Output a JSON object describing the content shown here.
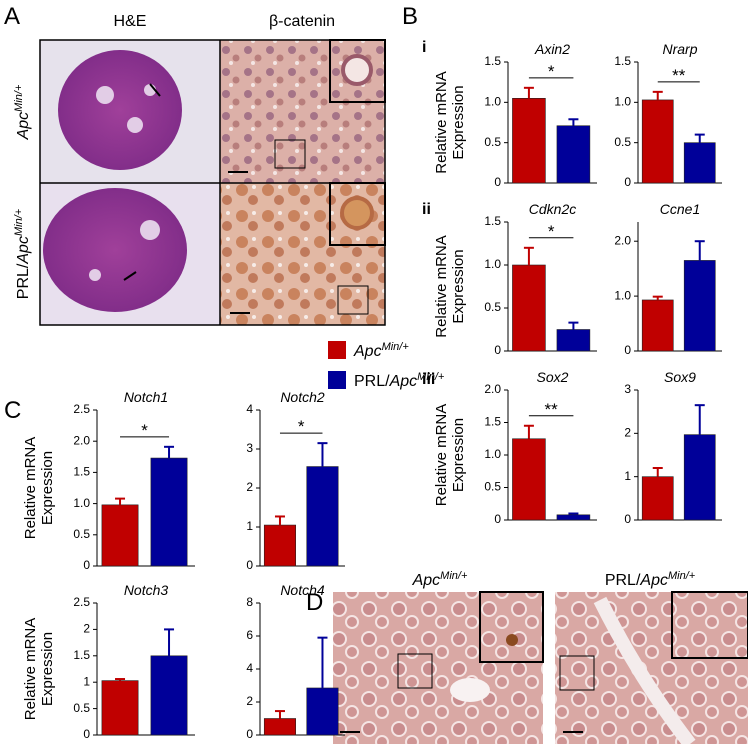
{
  "panels": {
    "A": {
      "letter": "A",
      "columns": [
        "H&E",
        "β-catenin"
      ],
      "rows": [
        {
          "italic": "Apc",
          "sup": "Min/+"
        },
        {
          "plain": "PRL/",
          "italic": "Apc",
          "sup": "Min/+"
        }
      ]
    },
    "B": {
      "letter": "B",
      "rows": [
        "i",
        "ii",
        "iii"
      ]
    },
    "C": {
      "letter": "C"
    },
    "D": {
      "letter": "D",
      "columns": [
        {
          "italic": "Apc",
          "sup": "Min/+"
        },
        {
          "plain": "PRL/",
          "italic": "Apc",
          "sup": "Min/+"
        }
      ]
    }
  },
  "legend": [
    {
      "italic": "Apc",
      "sup": "Min/+",
      "color": "#c00000"
    },
    {
      "plain": "PRL/",
      "italic": "Apc",
      "sup": "Min/+",
      "color": "#000099"
    }
  ],
  "chart_data": [
    {
      "type": "bar",
      "title": "Axin2",
      "y_label": [
        "Relative mRNA",
        "Expression"
      ],
      "categories": [
        null,
        null
      ],
      "values": [
        1.05,
        0.71
      ],
      "errors": [
        0.13,
        0.08
      ],
      "colors": [
        "#c00000",
        "#000099"
      ],
      "annotation": "*",
      "ylim": [
        0,
        1.5
      ],
      "yticks": [
        0,
        0.5,
        {
          "value": 1,
          "label": "1.0"
        },
        1.5
      ]
    },
    {
      "type": "bar",
      "title": "Nrarp",
      "categories": [
        null,
        null
      ],
      "values": [
        1.03,
        0.5
      ],
      "errors": [
        0.1,
        0.1
      ],
      "colors": [
        "#c00000",
        "#000099"
      ],
      "annotation": "**",
      "ylim": [
        0,
        1.5
      ],
      "yticks": [
        0,
        0.5,
        {
          "value": 1,
          "label": "1.0"
        },
        1.5
      ]
    },
    {
      "type": "bar",
      "title": "Cdkn2c",
      "y_label": [
        "Relative mRNA",
        "Expression"
      ],
      "categories": [
        null,
        null
      ],
      "values": [
        1.0,
        0.25
      ],
      "errors": [
        0.2,
        0.08
      ],
      "colors": [
        "#c00000",
        "#000099"
      ],
      "annotation": "*",
      "ylim": [
        0,
        1.5
      ],
      "yticks": [
        0,
        0.5,
        {
          "value": 1,
          "label": "1.0"
        },
        1.5
      ]
    },
    {
      "type": "bar",
      "title": "Ccne1",
      "categories": [
        null,
        null
      ],
      "values": [
        0.93,
        1.65
      ],
      "errors": [
        0.06,
        0.35
      ],
      "colors": [
        "#c00000",
        "#000099"
      ],
      "ylim": [
        0,
        2.35
      ],
      "yticks": [
        0,
        {
          "value": 1,
          "label": "1.0"
        },
        {
          "value": 2,
          "label": "2.0"
        }
      ]
    },
    {
      "type": "bar",
      "title": "Sox2",
      "y_label": [
        "Relative mRNA",
        "Expression"
      ],
      "categories": [
        null,
        null
      ],
      "values": [
        1.25,
        0.08
      ],
      "errors": [
        0.2,
        0.02
      ],
      "colors": [
        "#c00000",
        "#000099"
      ],
      "annotation": "**",
      "ylim": [
        0,
        2
      ],
      "yticks": [
        0,
        0.5,
        {
          "value": 1,
          "label": "1.0"
        },
        1.5,
        {
          "value": 2,
          "label": "2.0"
        }
      ]
    },
    {
      "type": "bar",
      "title": "Sox9",
      "categories": [
        null,
        null
      ],
      "values": [
        1.0,
        1.97
      ],
      "errors": [
        0.2,
        0.68
      ],
      "colors": [
        "#c00000",
        "#000099"
      ],
      "ylim": [
        0,
        3
      ],
      "yticks": [
        0,
        1,
        2,
        3
      ]
    },
    {
      "type": "bar",
      "title": "Notch1",
      "y_label": [
        "Relative mRNA",
        "Expression"
      ],
      "categories": [
        null,
        null
      ],
      "values": [
        0.98,
        1.73
      ],
      "errors": [
        0.1,
        0.18
      ],
      "colors": [
        "#c00000",
        "#000099"
      ],
      "annotation": "*",
      "ylim": [
        0,
        2.5
      ],
      "yticks": [
        0,
        0.5,
        {
          "value": 1,
          "label": "1.0"
        },
        1.5,
        {
          "value": 2,
          "label": "2.0"
        },
        2.5
      ]
    },
    {
      "type": "bar",
      "title": "Notch2",
      "categories": [
        null,
        null
      ],
      "values": [
        1.05,
        2.55
      ],
      "errors": [
        0.22,
        0.6
      ],
      "colors": [
        "#c00000",
        "#000099"
      ],
      "annotation": "*",
      "ylim": [
        0,
        4
      ],
      "yticks": [
        0,
        1,
        2,
        3,
        4
      ]
    },
    {
      "type": "bar",
      "title": "Notch3",
      "y_label": [
        "Relative mRNA",
        "Expression"
      ],
      "categories": [
        null,
        null
      ],
      "values": [
        1.03,
        1.5
      ],
      "errors": [
        0.03,
        0.5
      ],
      "colors": [
        "#c00000",
        "#000099"
      ],
      "ylim": [
        0,
        2.5
      ],
      "yticks": [
        0,
        0.5,
        1,
        1.5,
        2,
        2.5
      ]
    },
    {
      "type": "bar",
      "title": "Notch4",
      "categories": [
        null,
        null
      ],
      "values": [
        1.0,
        2.85
      ],
      "errors": [
        0.45,
        3.05
      ],
      "colors": [
        "#c00000",
        "#000099"
      ],
      "ylim": [
        0,
        8
      ],
      "yticks": [
        0,
        2,
        4,
        6,
        8
      ]
    }
  ]
}
